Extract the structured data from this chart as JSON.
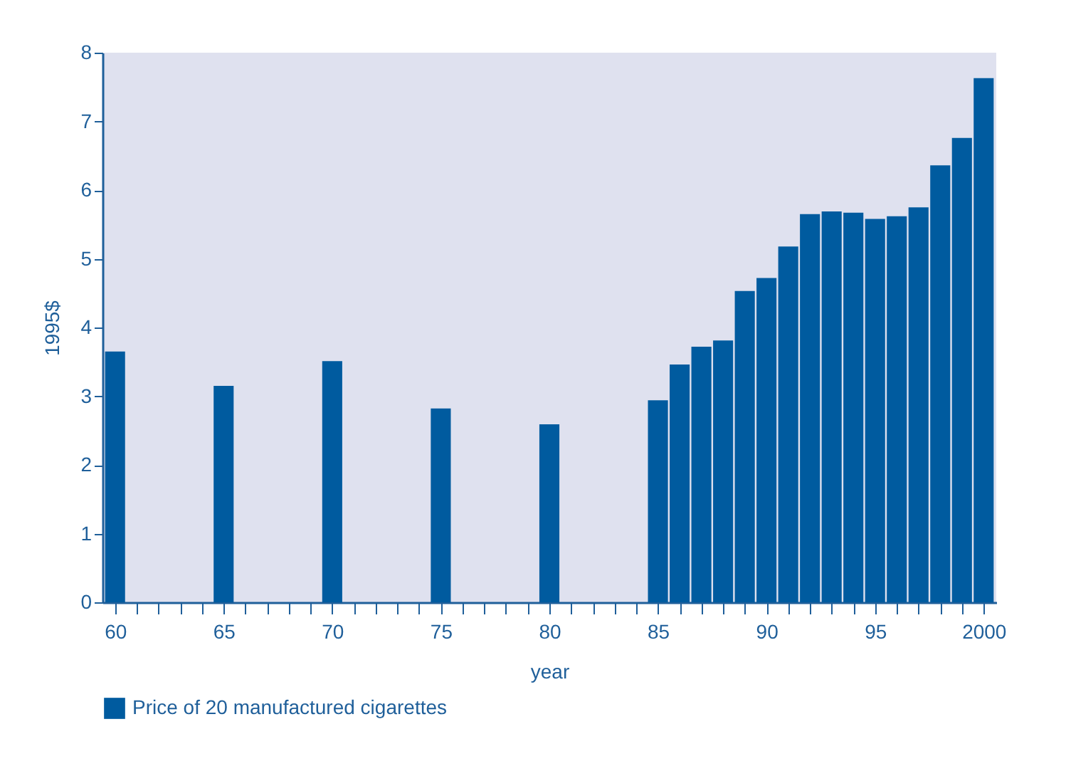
{
  "chart_data": {
    "type": "bar",
    "xlabel": "year",
    "ylabel": "1995$",
    "categories": [
      "60",
      null,
      null,
      null,
      null,
      "65",
      null,
      null,
      null,
      null,
      "70",
      null,
      null,
      null,
      null,
      "75",
      null,
      null,
      null,
      null,
      "80",
      null,
      null,
      null,
      null,
      "85",
      null,
      null,
      null,
      null,
      "90",
      null,
      null,
      null,
      null,
      "95",
      null,
      null,
      null,
      null,
      "2000"
    ],
    "series": [
      {
        "name": "Price of 20 manufactured cigarettes",
        "color": "#005b9f",
        "values": [
          3.65,
          null,
          null,
          null,
          null,
          3.15,
          null,
          null,
          null,
          null,
          3.51,
          null,
          null,
          null,
          null,
          2.82,
          null,
          null,
          null,
          null,
          2.59,
          null,
          null,
          null,
          null,
          2.94,
          3.46,
          3.72,
          3.81,
          4.53,
          4.72,
          5.18,
          5.65,
          5.69,
          5.67,
          5.58,
          5.62,
          5.75,
          6.36,
          6.76,
          7.63
        ]
      }
    ],
    "ylim": [
      0,
      8
    ],
    "yticks": [
      0,
      1,
      2,
      3,
      4,
      5,
      6,
      7,
      8
    ],
    "grid": false,
    "legend": "bottom"
  }
}
